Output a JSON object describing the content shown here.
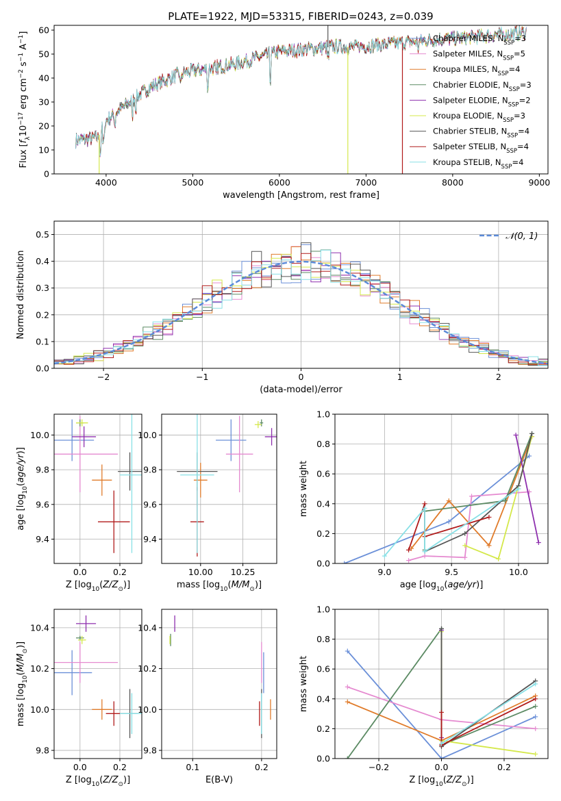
{
  "title": "PLATE=1922, MJD=53315, FIBERID=0243, z=0.039",
  "colors": {
    "models": [
      "#6a8fd8",
      "#e58ad0",
      "#e07b2a",
      "#5b8a63",
      "#8e2fae",
      "#d4e84a",
      "#555555",
      "#b01a1a",
      "#88e0e6"
    ],
    "gaussian": "#5b8ad8",
    "grid": "#b0b0b0"
  },
  "models": [
    {
      "label": "Chabrier MILES, N",
      "sub": "SSP",
      "tail": "=3"
    },
    {
      "label": "Salpeter MILES, N",
      "sub": "SSP",
      "tail": "=5"
    },
    {
      "label": "Kroupa MILES, N",
      "sub": "SSP",
      "tail": "=4"
    },
    {
      "label": "Chabrier ELODIE, N",
      "sub": "SSP",
      "tail": "=3"
    },
    {
      "label": "Salpeter ELODIE, N",
      "sub": "SSP",
      "tail": "=2"
    },
    {
      "label": "Kroupa ELODIE, N",
      "sub": "SSP",
      "tail": "=3"
    },
    {
      "label": "Chabrier STELIB, N",
      "sub": "SSP",
      "tail": "=4"
    },
    {
      "label": "Salpeter STELIB, N",
      "sub": "SSP",
      "tail": "=4"
    },
    {
      "label": "Kroupa STELIB, N",
      "sub": "SSP",
      "tail": "=4"
    }
  ],
  "chart_data": [
    {
      "id": "spectrum",
      "type": "line",
      "xlabel": "wavelength [Angstrom, rest frame]",
      "ylabel": "Flux [f_λ 10^-17 erg cm^-2 s^-1 A^-1]",
      "xlim": [
        3400,
        9100
      ],
      "ylim": [
        0,
        62
      ],
      "xticks": [
        4000,
        5000,
        6000,
        7000,
        8000,
        9000
      ],
      "yticks": [
        0,
        10,
        20,
        30,
        40,
        50,
        60
      ],
      "continuum": [
        [
          3650,
          14
        ],
        [
          3900,
          15
        ],
        [
          4000,
          22
        ],
        [
          4200,
          28
        ],
        [
          4500,
          36
        ],
        [
          4800,
          41
        ],
        [
          5000,
          43
        ],
        [
          5200,
          44
        ],
        [
          5500,
          46
        ],
        [
          5800,
          49
        ],
        [
          6000,
          51
        ],
        [
          6300,
          52
        ],
        [
          6600,
          53
        ],
        [
          6900,
          53
        ],
        [
          7200,
          54
        ],
        [
          7500,
          55
        ],
        [
          7800,
          56
        ],
        [
          8200,
          57
        ],
        [
          8500,
          58
        ],
        [
          8850,
          59
        ]
      ],
      "features": [
        {
          "model": 5,
          "x": 3920,
          "y_to": 0
        },
        {
          "model": 7,
          "x": 7420,
          "y_to": 0
        },
        {
          "model": 5,
          "x": 6790,
          "y_to": 0
        },
        {
          "model": 6,
          "x": 6560,
          "y_to": 62
        }
      ],
      "legend_position": "upper-right",
      "grid": false
    },
    {
      "id": "residuals",
      "type": "histogram",
      "xlabel": "(data-model)/error",
      "ylabel": "Normed distribution",
      "xlim": [
        -2.5,
        2.5
      ],
      "ylim": [
        0,
        0.55
      ],
      "xticks": [
        -2,
        -1,
        0,
        1,
        2
      ],
      "yticks": [
        0,
        0.1,
        0.2,
        0.3,
        0.4,
        0.5
      ],
      "bin_width": 0.1,
      "gaussian_label": "𝒩(0, 1)",
      "legend_position": "upper-right",
      "grid": true
    },
    {
      "id": "age-vs-Z",
      "type": "errorbar",
      "xlabel": "Z [log10(Z/Z_⊙)]",
      "ylabel": "age [log10(age/yr)]",
      "xlim": [
        -0.13,
        0.31
      ],
      "ylim": [
        9.26,
        10.12
      ],
      "xticks": [
        0.0,
        0.2
      ],
      "yticks": [
        9.4,
        9.6,
        9.8,
        10.0
      ],
      "grid": true,
      "points": [
        {
          "m": 0,
          "x": -0.04,
          "y": 9.97,
          "xerr": 0.11,
          "yerr": 0.12
        },
        {
          "m": 1,
          "x": 0.0,
          "y": 9.89,
          "xerr": 0.19,
          "yerr": 0.22
        },
        {
          "m": 2,
          "x": 0.11,
          "y": 9.74,
          "xerr": 0.05,
          "yerr": 0.09
        },
        {
          "m": 3,
          "x": 0.0,
          "y": 10.07,
          "xerr": 0.02,
          "yerr": 0.02
        },
        {
          "m": 4,
          "x": 0.02,
          "y": 9.99,
          "xerr": 0.06,
          "yerr": 0.06
        },
        {
          "m": 5,
          "x": 0.01,
          "y": 10.07,
          "xerr": 0.03,
          "yerr": 0.02
        },
        {
          "m": 6,
          "x": 0.25,
          "y": 9.79,
          "xerr": 0.06,
          "yerr": 0.11
        },
        {
          "m": 7,
          "x": 0.17,
          "y": 9.5,
          "xerr": 0.08,
          "yerr": 0.18
        },
        {
          "m": 8,
          "x": 0.26,
          "y": 9.77,
          "xerr": 0.06,
          "yerr": 0.45
        }
      ]
    },
    {
      "id": "age-vs-mass",
      "type": "errorbar",
      "xlabel": "mass [log10(M/M_⊙)]",
      "ylabel": "",
      "xlim": [
        9.77,
        10.45
      ],
      "ylim": [
        9.26,
        10.12
      ],
      "xticks": [
        10.0,
        10.25
      ],
      "yticks": [
        9.4,
        9.6,
        9.8,
        10.0
      ],
      "grid": true,
      "points": [
        {
          "m": 0,
          "x": 10.18,
          "y": 9.97,
          "xerr": 0.09,
          "yerr": 0.12
        },
        {
          "m": 1,
          "x": 10.23,
          "y": 9.89,
          "xerr": 0.08,
          "yerr": 0.22
        },
        {
          "m": 2,
          "x": 10.0,
          "y": 9.74,
          "xerr": 0.04,
          "yerr": 0.1
        },
        {
          "m": 3,
          "x": 10.36,
          "y": 10.07,
          "xerr": 0.01,
          "yerr": 0.02
        },
        {
          "m": 4,
          "x": 10.42,
          "y": 9.99,
          "xerr": 0.04,
          "yerr": 0.05
        },
        {
          "m": 5,
          "x": 10.34,
          "y": 10.06,
          "xerr": 0.02,
          "yerr": 0.02
        },
        {
          "m": 6,
          "x": 9.98,
          "y": 9.79,
          "xerr": 0.12,
          "yerr": 0.11
        },
        {
          "m": 7,
          "x": 9.98,
          "y": 9.5,
          "xerr": 0.04,
          "yerr": 0.2
        },
        {
          "m": 8,
          "x": 9.98,
          "y": 9.77,
          "xerr": 0.1,
          "yerr": 0.45
        }
      ]
    },
    {
      "id": "mass-weight-vs-age",
      "type": "line",
      "xlabel": "age [log10(age/yr)]",
      "ylabel": "mass weight",
      "xlim": [
        8.63,
        10.22
      ],
      "ylim": [
        0,
        1
      ],
      "xticks": [
        9.0,
        9.5,
        10.0
      ],
      "yticks": [
        0.0,
        0.2,
        0.4,
        0.6,
        0.8,
        1.0
      ],
      "grid": true,
      "series": [
        {
          "m": 0,
          "x": [
            8.7,
            9.48,
            10.08
          ],
          "y": [
            0.0,
            0.28,
            0.72
          ]
        },
        {
          "m": 1,
          "x": [
            9.18,
            9.3,
            9.6,
            9.65,
            10.08
          ],
          "y": [
            0.02,
            0.05,
            0.04,
            0.45,
            0.48
          ]
        },
        {
          "m": 2,
          "x": [
            9.2,
            9.48,
            9.78,
            10.1
          ],
          "y": [
            0.1,
            0.42,
            0.12,
            0.85
          ]
        },
        {
          "m": 3,
          "x": [
            9.3,
            9.3,
            9.9,
            10.1
          ],
          "y": [
            0.09,
            0.35,
            0.42,
            0.87
          ]
        },
        {
          "m": 4,
          "x": [
            9.98,
            10.15
          ],
          "y": [
            0.86,
            0.14
          ]
        },
        {
          "m": 5,
          "x": [
            9.6,
            9.85,
            10.1
          ],
          "y": [
            0.12,
            0.03,
            0.85
          ]
        },
        {
          "m": 6,
          "x": [
            9.3,
            9.6,
            10.0,
            10.1
          ],
          "y": [
            0.08,
            0.2,
            0.52,
            0.87
          ]
        },
        {
          "m": 7,
          "x": [
            9.18,
            9.3,
            9.3,
            9.78
          ],
          "y": [
            0.09,
            0.4,
            0.18,
            0.31
          ]
        },
        {
          "m": 8,
          "x": [
            9.0,
            9.3,
            9.3,
            10.0
          ],
          "y": [
            0.05,
            0.37,
            0.08,
            0.5
          ]
        }
      ]
    },
    {
      "id": "mass-vs-Z",
      "type": "errorbar",
      "xlabel": "Z [log10(Z/Z_⊙)]",
      "ylabel": "mass [log10(M/M_⊙)]",
      "xlim": [
        -0.13,
        0.31
      ],
      "ylim": [
        9.76,
        10.49
      ],
      "xticks": [
        0.0,
        0.2
      ],
      "yticks": [
        9.8,
        10.0,
        10.2,
        10.4
      ],
      "grid": true,
      "points": [
        {
          "m": 0,
          "x": -0.04,
          "y": 10.18,
          "xerr": 0.1,
          "yerr": 0.11
        },
        {
          "m": 1,
          "x": 0.0,
          "y": 10.23,
          "xerr": 0.19,
          "yerr": 0.1
        },
        {
          "m": 2,
          "x": 0.11,
          "y": 10.0,
          "xerr": 0.05,
          "yerr": 0.05
        },
        {
          "m": 3,
          "x": 0.0,
          "y": 10.35,
          "xerr": 0.02,
          "yerr": 0.01
        },
        {
          "m": 4,
          "x": 0.03,
          "y": 10.42,
          "xerr": 0.05,
          "yerr": 0.04
        },
        {
          "m": 5,
          "x": 0.01,
          "y": 10.34,
          "xerr": 0.02,
          "yerr": 0.02
        },
        {
          "m": 6,
          "x": 0.25,
          "y": 9.98,
          "xerr": 0.04,
          "yerr": 0.12
        },
        {
          "m": 7,
          "x": 0.17,
          "y": 9.98,
          "xerr": 0.04,
          "yerr": 0.06
        },
        {
          "m": 8,
          "x": 0.26,
          "y": 9.98,
          "xerr": 0.06,
          "yerr": 0.1
        }
      ]
    },
    {
      "id": "mass-vs-ebv",
      "type": "errorbar",
      "xlabel": "E(B-V)",
      "ylabel": "",
      "xlim": [
        0.055,
        0.222
      ],
      "ylim": [
        9.76,
        10.49
      ],
      "xticks": [
        0.1,
        0.2
      ],
      "yticks": [
        9.8,
        10.0,
        10.2,
        10.4
      ],
      "grid": true,
      "points": [
        {
          "m": 0,
          "x": 0.203,
          "y": 10.18,
          "xerr": 0.0,
          "yerr": 0.1
        },
        {
          "m": 1,
          "x": 0.2,
          "y": 10.23,
          "xerr": 0.0,
          "yerr": 0.1
        },
        {
          "m": 2,
          "x": 0.213,
          "y": 10.0,
          "xerr": 0.0,
          "yerr": 0.05
        },
        {
          "m": 3,
          "x": 0.068,
          "y": 10.34,
          "xerr": 0.0,
          "yerr": 0.03
        },
        {
          "m": 4,
          "x": 0.074,
          "y": 10.42,
          "xerr": 0.0,
          "yerr": 0.04
        },
        {
          "m": 5,
          "x": 0.067,
          "y": 10.34,
          "xerr": 0.0,
          "yerr": 0.02
        },
        {
          "m": 6,
          "x": 0.2,
          "y": 9.98,
          "xerr": 0.0,
          "yerr": 0.12
        },
        {
          "m": 7,
          "x": 0.197,
          "y": 9.98,
          "xerr": 0.0,
          "yerr": 0.06
        },
        {
          "m": 8,
          "x": 0.2,
          "y": 9.98,
          "xerr": 0.0,
          "yerr": 0.1
        }
      ]
    },
    {
      "id": "mass-weight-vs-Z",
      "type": "line",
      "xlabel": "Z [log10(Z/Z_⊙)]",
      "ylabel": "mass weight",
      "xlim": [
        -0.34,
        0.34
      ],
      "ylim": [
        0,
        1
      ],
      "xticks": [
        -0.2,
        0.0,
        0.2
      ],
      "yticks": [
        0.0,
        0.2,
        0.4,
        0.6,
        0.8,
        1.0
      ],
      "grid": true,
      "series": [
        {
          "m": 0,
          "x": [
            -0.3,
            0.0,
            0.3
          ],
          "y": [
            0.72,
            0.0,
            0.28
          ]
        },
        {
          "m": 1,
          "x": [
            -0.3,
            0.0,
            0.3
          ],
          "y": [
            0.48,
            0.26,
            0.2
          ]
        },
        {
          "m": 2,
          "x": [
            -0.3,
            0.0,
            0.3
          ],
          "y": [
            0.38,
            0.12,
            0.42
          ]
        },
        {
          "m": 3,
          "x": [
            -0.3,
            0.0,
            0.0,
            0.3
          ],
          "y": [
            0.0,
            0.87,
            0.09,
            0.35
          ]
        },
        {
          "m": 4,
          "x": [
            0.0,
            0.0
          ],
          "y": [
            0.86,
            0.14
          ]
        },
        {
          "m": 5,
          "x": [
            0.0,
            0.0,
            0.3
          ],
          "y": [
            0.85,
            0.12,
            0.03
          ]
        },
        {
          "m": 6,
          "x": [
            0.0,
            0.0,
            0.3
          ],
          "y": [
            0.87,
            0.08,
            0.52
          ]
        },
        {
          "m": 7,
          "x": [
            0.0,
            0.0,
            0.3
          ],
          "y": [
            0.31,
            0.09,
            0.4
          ]
        },
        {
          "m": 8,
          "x": [
            0.0,
            0.3
          ],
          "y": [
            0.1,
            0.5
          ]
        }
      ]
    }
  ]
}
